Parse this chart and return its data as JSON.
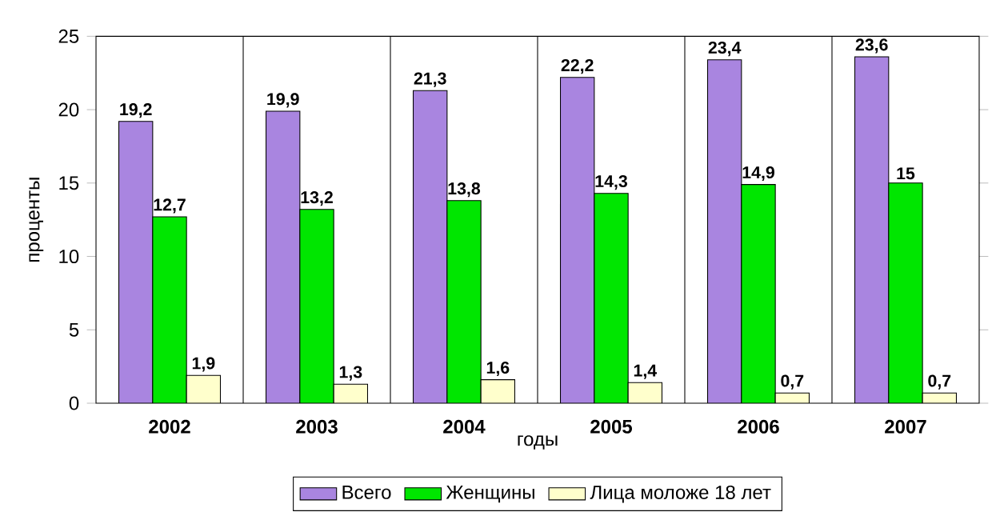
{
  "chart_data": {
    "type": "bar",
    "xlabel": "годы",
    "ylabel": "проценты",
    "categories": [
      "2002",
      "2003",
      "2004",
      "2005",
      "2006",
      "2007"
    ],
    "series": [
      {
        "name": "Всего",
        "color": "#a985e0",
        "values": [
          19.2,
          19.9,
          21.3,
          22.2,
          23.4,
          23.6
        ],
        "value_labels": [
          "19,2",
          "19,9",
          "21,3",
          "22,2",
          "23,4",
          "23,6"
        ]
      },
      {
        "name": "Женщины",
        "color": "#00e600",
        "values": [
          12.7,
          13.2,
          13.8,
          14.3,
          14.9,
          15
        ],
        "value_labels": [
          "12,7",
          "13,2",
          "13,8",
          "14,3",
          "14,9",
          "15"
        ]
      },
      {
        "name": "Лица моложе 18 лет",
        "color": "#ffffcc",
        "values": [
          1.9,
          1.3,
          1.6,
          1.4,
          0.7,
          0.7
        ],
        "value_labels": [
          "1,9",
          "1,3",
          "1,6",
          "1,4",
          "0,7",
          "0,7"
        ]
      }
    ],
    "ylim": [
      0,
      25
    ],
    "yticks": [
      0,
      5,
      10,
      15,
      20,
      25
    ],
    "grid": "x",
    "legend": "bottom"
  }
}
